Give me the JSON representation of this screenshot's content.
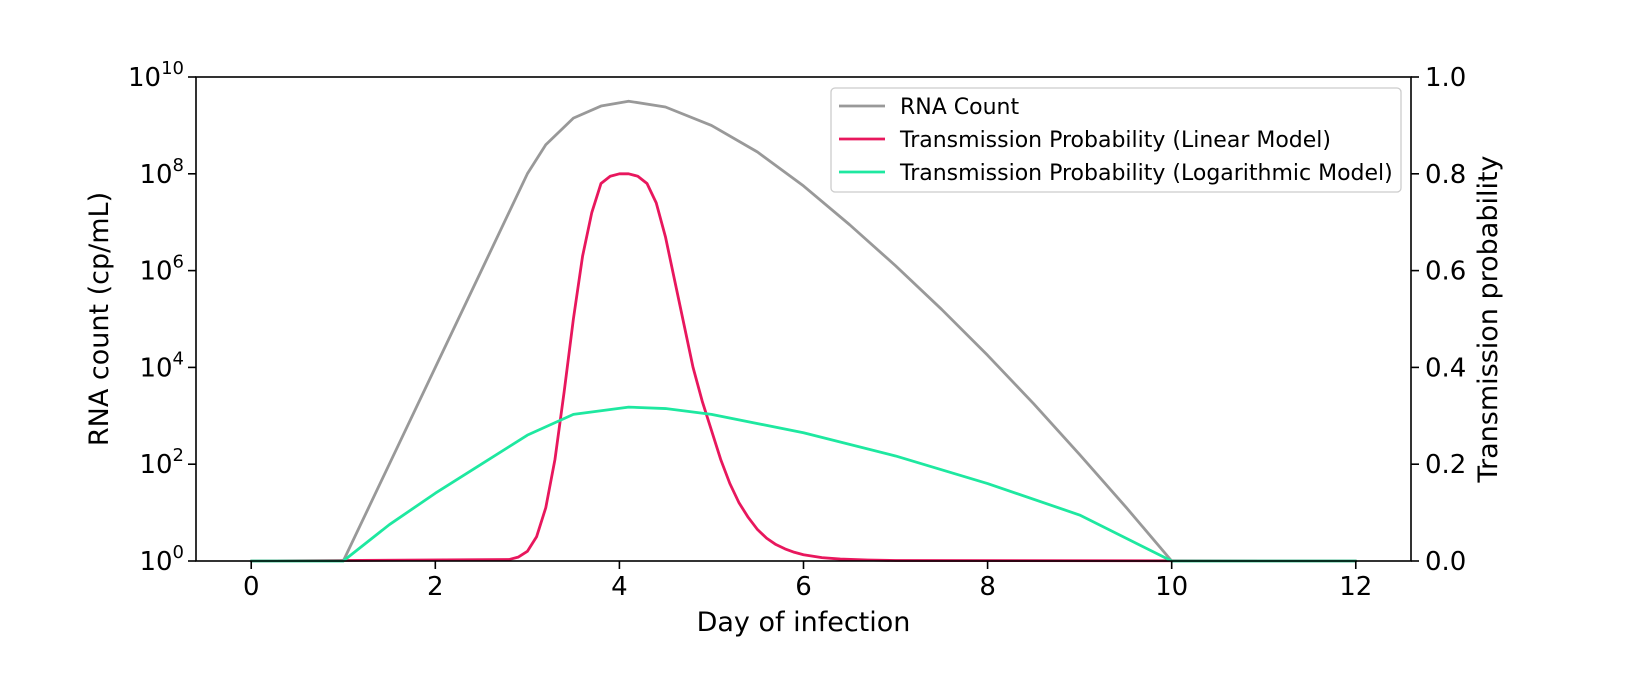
{
  "chart_data": {
    "type": "line",
    "xlabel": "Day of infection",
    "ylabel_left": "RNA count (cp/mL)",
    "ylabel_right": "Transmission probability",
    "xlim": [
      -0.6,
      12.6
    ],
    "xticks": [
      0,
      2,
      4,
      6,
      8,
      10,
      12
    ],
    "y_left": {
      "scale": "log",
      "base": 10,
      "exponent_range": [
        0,
        10
      ],
      "tick_exponents": [
        0,
        2,
        4,
        6,
        8,
        10
      ]
    },
    "y_right": {
      "scale": "linear",
      "range": [
        0.0,
        1.0
      ],
      "ticks": [
        "0.0",
        "0.2",
        "0.4",
        "0.6",
        "0.8",
        "1.0"
      ]
    },
    "grid": false,
    "legend_position": "top-right",
    "colors": {
      "rna": "#999999",
      "linear": "#e8175d",
      "log": "#1ee8a0"
    },
    "series": [
      {
        "name": "RNA Count",
        "axis": "left",
        "color": "#999999",
        "note_units": "log10(cp/mL)",
        "x": [
          0,
          1,
          1.5,
          2,
          2.5,
          3,
          3.2,
          3.5,
          3.8,
          4.1,
          4.5,
          5,
          5.5,
          6,
          6.5,
          7,
          7.5,
          8,
          8.5,
          9,
          9.5,
          10,
          11,
          12
        ],
        "y": [
          0,
          0,
          2.0,
          4.0,
          6.0,
          8.0,
          8.6,
          9.15,
          9.4,
          9.5,
          9.38,
          9.0,
          8.45,
          7.75,
          6.95,
          6.1,
          5.2,
          4.25,
          3.25,
          2.2,
          1.12,
          0,
          0,
          0
        ]
      },
      {
        "name": "Transmission Probability (Linear Model)",
        "axis": "right",
        "color": "#e8175d",
        "x": [
          0,
          2.8,
          2.9,
          3.0,
          3.1,
          3.2,
          3.3,
          3.4,
          3.5,
          3.6,
          3.7,
          3.8,
          3.9,
          4.0,
          4.1,
          4.2,
          4.3,
          4.4,
          4.5,
          4.6,
          4.7,
          4.8,
          4.9,
          5.0,
          5.1,
          5.2,
          5.3,
          5.4,
          5.5,
          5.6,
          5.7,
          5.8,
          5.9,
          6.0,
          6.2,
          6.4,
          6.7,
          7.0,
          12
        ],
        "y": [
          0.0,
          0.003,
          0.008,
          0.02,
          0.05,
          0.11,
          0.21,
          0.35,
          0.5,
          0.63,
          0.72,
          0.78,
          0.795,
          0.8,
          0.8,
          0.795,
          0.78,
          0.74,
          0.67,
          0.58,
          0.49,
          0.4,
          0.33,
          0.27,
          0.21,
          0.16,
          0.12,
          0.09,
          0.065,
          0.047,
          0.034,
          0.025,
          0.018,
          0.013,
          0.007,
          0.004,
          0.002,
          0.001,
          0.0
        ]
      },
      {
        "name": "Transmission Probability (Logarithmic Model)",
        "axis": "right",
        "color": "#1ee8a0",
        "x": [
          0,
          1,
          1.5,
          2,
          2.5,
          3,
          3.5,
          4.1,
          4.5,
          5,
          6,
          7,
          8,
          9,
          10,
          11,
          12
        ],
        "y": [
          0.0,
          0.0,
          0.075,
          0.14,
          0.2,
          0.26,
          0.303,
          0.318,
          0.315,
          0.303,
          0.265,
          0.217,
          0.16,
          0.095,
          0.0,
          0.0,
          0.0
        ]
      }
    ]
  }
}
